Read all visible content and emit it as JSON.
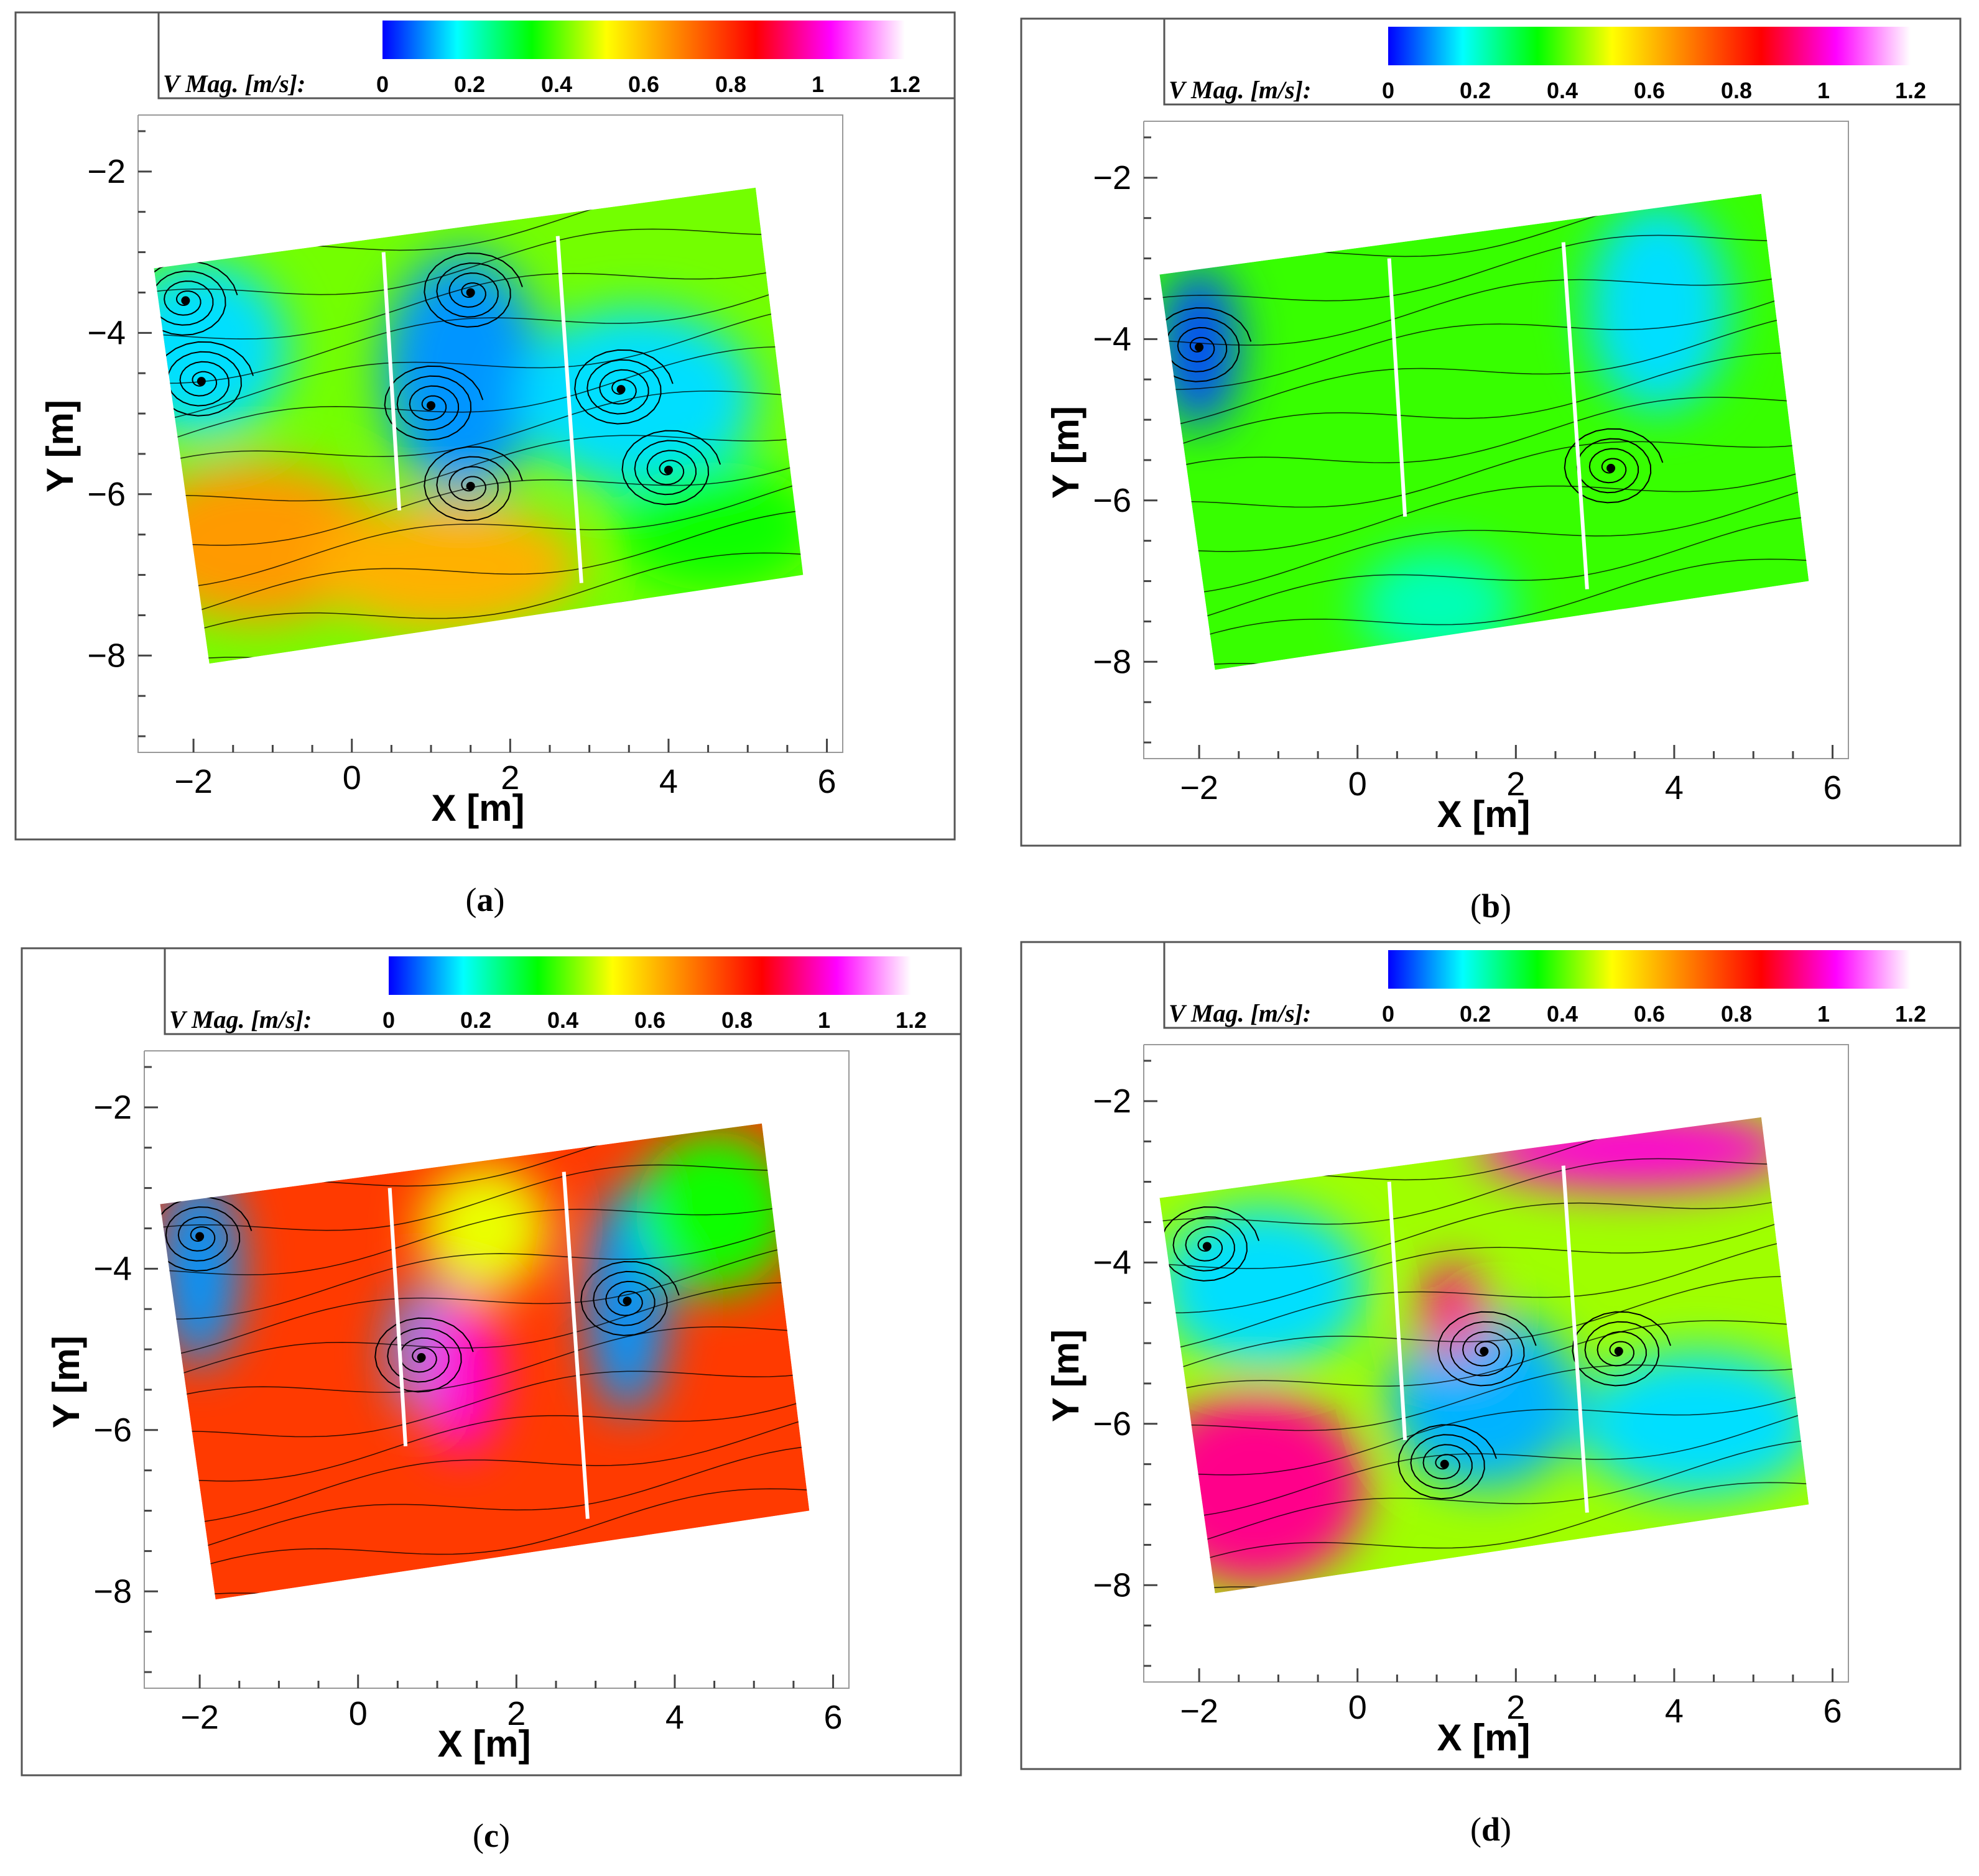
{
  "figure": {
    "panels": [
      {
        "id": "a",
        "caption_letter": "a"
      },
      {
        "id": "b",
        "caption_letter": "b"
      },
      {
        "id": "c",
        "caption_letter": "c"
      },
      {
        "id": "d",
        "caption_letter": "d"
      }
    ]
  },
  "colors": {
    "colormap": [
      "#0000ff",
      "#00ffff",
      "#00ff00",
      "#ffff00",
      "#ff8000",
      "#ff0000",
      "#ff00ff",
      "#ffffff"
    ],
    "streamline": "#000000"
  },
  "chart_data": [
    {
      "panel": "a",
      "type": "heatmap",
      "subtype": "velocity-magnitude contour with streamlines",
      "colorbar": {
        "label": "V Mag. [m/s]:",
        "ticks": [
          "0",
          "0.2",
          "0.4",
          "0.6",
          "0.8",
          "1",
          "1.2"
        ],
        "range": [
          0,
          1.2
        ]
      },
      "xlabel": "X [m]",
      "ylabel": "Y [m]",
      "xticks": [
        "−2",
        "0",
        "2",
        "4",
        "6"
      ],
      "yticks": [
        "−2",
        "−4",
        "−6",
        "−8"
      ],
      "xlim": [
        -2.7,
        6.2
      ],
      "ylim": [
        -9.2,
        -1.3
      ],
      "domain_corners": [
        [
          -2.5,
          -3.2
        ],
        [
          5.1,
          -2.2
        ],
        [
          5.7,
          -7.0
        ],
        [
          -1.8,
          -8.1
        ]
      ],
      "walls": [
        [
          [
            0.4,
            -3.0
          ],
          [
            0.6,
            -6.2
          ]
        ],
        [
          [
            2.6,
            -2.8
          ],
          [
            2.9,
            -7.1
          ]
        ]
      ],
      "regions": [
        {
          "x": -1.9,
          "y": -4.2,
          "rx": 1.1,
          "ry": 1.1,
          "v": 0.15
        },
        {
          "x": 1.4,
          "y": -4.5,
          "rx": 1.0,
          "ry": 1.5,
          "v": 0.1
        },
        {
          "x": 3.6,
          "y": -4.8,
          "rx": 1.5,
          "ry": 1.1,
          "v": 0.15
        },
        {
          "x": -1.2,
          "y": -6.6,
          "rx": 1.6,
          "ry": 1.0,
          "v": 0.65
        },
        {
          "x": 1.2,
          "y": -6.9,
          "rx": 1.7,
          "ry": 0.8,
          "v": 0.62
        },
        {
          "x": 4.6,
          "y": -6.4,
          "rx": 1.3,
          "ry": 0.8,
          "v": 0.35
        }
      ],
      "background_v": 0.42,
      "vortices": [
        {
          "x": -1.9,
          "y": -4.6
        },
        {
          "x": -2.1,
          "y": -3.6
        },
        {
          "x": 1.5,
          "y": -3.5
        },
        {
          "x": 1.0,
          "y": -4.9
        },
        {
          "x": 1.5,
          "y": -5.9
        },
        {
          "x": 3.4,
          "y": -4.7
        },
        {
          "x": 4.0,
          "y": -5.7
        }
      ]
    },
    {
      "panel": "b",
      "type": "heatmap",
      "subtype": "velocity-magnitude contour with streamlines",
      "colorbar": {
        "label": "V Mag. [m/s]:",
        "ticks": [
          "0",
          "0.2",
          "0.4",
          "0.6",
          "0.8",
          "1",
          "1.2"
        ],
        "range": [
          0,
          1.2
        ]
      },
      "xlabel": "X [m]",
      "ylabel": "Y [m]",
      "xticks": [
        "−2",
        "0",
        "2",
        "4",
        "6"
      ],
      "yticks": [
        "−2",
        "−4",
        "−6",
        "−8"
      ],
      "xlim": [
        -2.7,
        6.2
      ],
      "ylim": [
        -9.2,
        -1.3
      ],
      "domain_corners": [
        [
          -2.5,
          -3.2
        ],
        [
          5.1,
          -2.2
        ],
        [
          5.7,
          -7.0
        ],
        [
          -1.8,
          -8.1
        ]
      ],
      "walls": [
        [
          [
            0.4,
            -3.0
          ],
          [
            0.6,
            -6.2
          ]
        ],
        [
          [
            2.6,
            -2.8
          ],
          [
            2.9,
            -7.1
          ]
        ]
      ],
      "regions": [
        {
          "x": -2.0,
          "y": -4.1,
          "rx": 0.5,
          "ry": 1.0,
          "v": 0.05
        },
        {
          "x": 3.8,
          "y": -3.6,
          "rx": 0.9,
          "ry": 1.3,
          "v": 0.15
        },
        {
          "x": 1.0,
          "y": -7.3,
          "rx": 1.0,
          "ry": 0.7,
          "v": 0.22
        }
      ],
      "background_v": 0.38,
      "vortices": [
        {
          "x": -2.0,
          "y": -4.1
        },
        {
          "x": 3.2,
          "y": -5.6
        }
      ]
    },
    {
      "panel": "c",
      "type": "heatmap",
      "subtype": "velocity-magnitude contour with streamlines",
      "colorbar": {
        "label": "V Mag. [m/s]:",
        "ticks": [
          "0",
          "0.2",
          "0.4",
          "0.6",
          "0.8",
          "1",
          "1.2"
        ],
        "range": [
          0,
          1.2
        ]
      },
      "xlabel": "X [m]",
      "ylabel": "Y [m]",
      "xticks": [
        "−2",
        "0",
        "2",
        "4",
        "6"
      ],
      "yticks": [
        "−2",
        "−4",
        "−6",
        "−8"
      ],
      "xlim": [
        -2.7,
        6.2
      ],
      "ylim": [
        -9.2,
        -1.3
      ],
      "domain_corners": [
        [
          -2.5,
          -3.2
        ],
        [
          5.1,
          -2.2
        ],
        [
          5.7,
          -7.0
        ],
        [
          -1.8,
          -8.1
        ]
      ],
      "walls": [
        [
          [
            0.4,
            -3.0
          ],
          [
            0.6,
            -6.2
          ]
        ],
        [
          [
            2.6,
            -2.8
          ],
          [
            2.9,
            -7.1
          ]
        ]
      ],
      "regions": [
        {
          "x": -2.0,
          "y": -4.0,
          "rx": 0.5,
          "ry": 1.2,
          "v": 0.1
        },
        {
          "x": 0.8,
          "y": -5.0,
          "rx": 0.4,
          "ry": 0.8,
          "v": 0.1
        },
        {
          "x": 3.4,
          "y": -4.4,
          "rx": 0.5,
          "ry": 1.4,
          "v": 0.1
        },
        {
          "x": 1.3,
          "y": -5.3,
          "rx": 0.5,
          "ry": 1.0,
          "v": 1.0
        },
        {
          "x": 4.5,
          "y": -3.3,
          "rx": 1.0,
          "ry": 1.0,
          "v": 0.35
        },
        {
          "x": 1.6,
          "y": -3.5,
          "rx": 0.8,
          "ry": 0.8,
          "v": 0.5
        }
      ],
      "background_v": 0.78,
      "vortices": [
        {
          "x": -2.0,
          "y": -3.6
        },
        {
          "x": 0.8,
          "y": -5.1
        },
        {
          "x": 3.4,
          "y": -4.4
        }
      ]
    },
    {
      "panel": "d",
      "type": "heatmap",
      "subtype": "velocity-magnitude contour with streamlines",
      "colorbar": {
        "label": "V Mag. [m/s]:",
        "ticks": [
          "0",
          "0.2",
          "0.4",
          "0.6",
          "0.8",
          "1",
          "1.2"
        ],
        "range": [
          0,
          1.2
        ]
      },
      "xlabel": "X [m]",
      "ylabel": "Y [m]",
      "xticks": [
        "−2",
        "0",
        "2",
        "4",
        "6"
      ],
      "yticks": [
        "−2",
        "−4",
        "−6",
        "−8"
      ],
      "xlim": [
        -2.7,
        6.2
      ],
      "ylim": [
        -9.2,
        -1.3
      ],
      "domain_corners": [
        [
          -2.5,
          -3.2
        ],
        [
          5.1,
          -2.2
        ],
        [
          5.7,
          -7.0
        ],
        [
          -1.8,
          -8.1
        ]
      ],
      "walls": [
        [
          [
            0.4,
            -3.0
          ],
          [
            0.6,
            -6.2
          ]
        ],
        [
          [
            2.6,
            -2.8
          ],
          [
            2.9,
            -7.1
          ]
        ]
      ],
      "regions": [
        {
          "x": -1.2,
          "y": -4.3,
          "rx": 1.3,
          "ry": 1.0,
          "v": 0.15
        },
        {
          "x": 1.6,
          "y": -5.7,
          "rx": 1.2,
          "ry": 1.1,
          "v": 0.12
        },
        {
          "x": 4.3,
          "y": -6.0,
          "rx": 1.5,
          "ry": 0.9,
          "v": 0.15
        },
        {
          "x": -1.3,
          "y": -6.8,
          "rx": 1.4,
          "ry": 1.2,
          "v": 0.95
        },
        {
          "x": 3.5,
          "y": -2.6,
          "rx": 2.0,
          "ry": 0.5,
          "v": 1.0
        },
        {
          "x": 1.2,
          "y": -4.6,
          "rx": 0.4,
          "ry": 0.6,
          "v": 0.95
        }
      ],
      "background_v": 0.45,
      "vortices": [
        {
          "x": -1.9,
          "y": -3.8
        },
        {
          "x": 1.6,
          "y": -5.1
        },
        {
          "x": 3.3,
          "y": -5.1
        },
        {
          "x": 1.1,
          "y": -6.5
        }
      ]
    }
  ]
}
